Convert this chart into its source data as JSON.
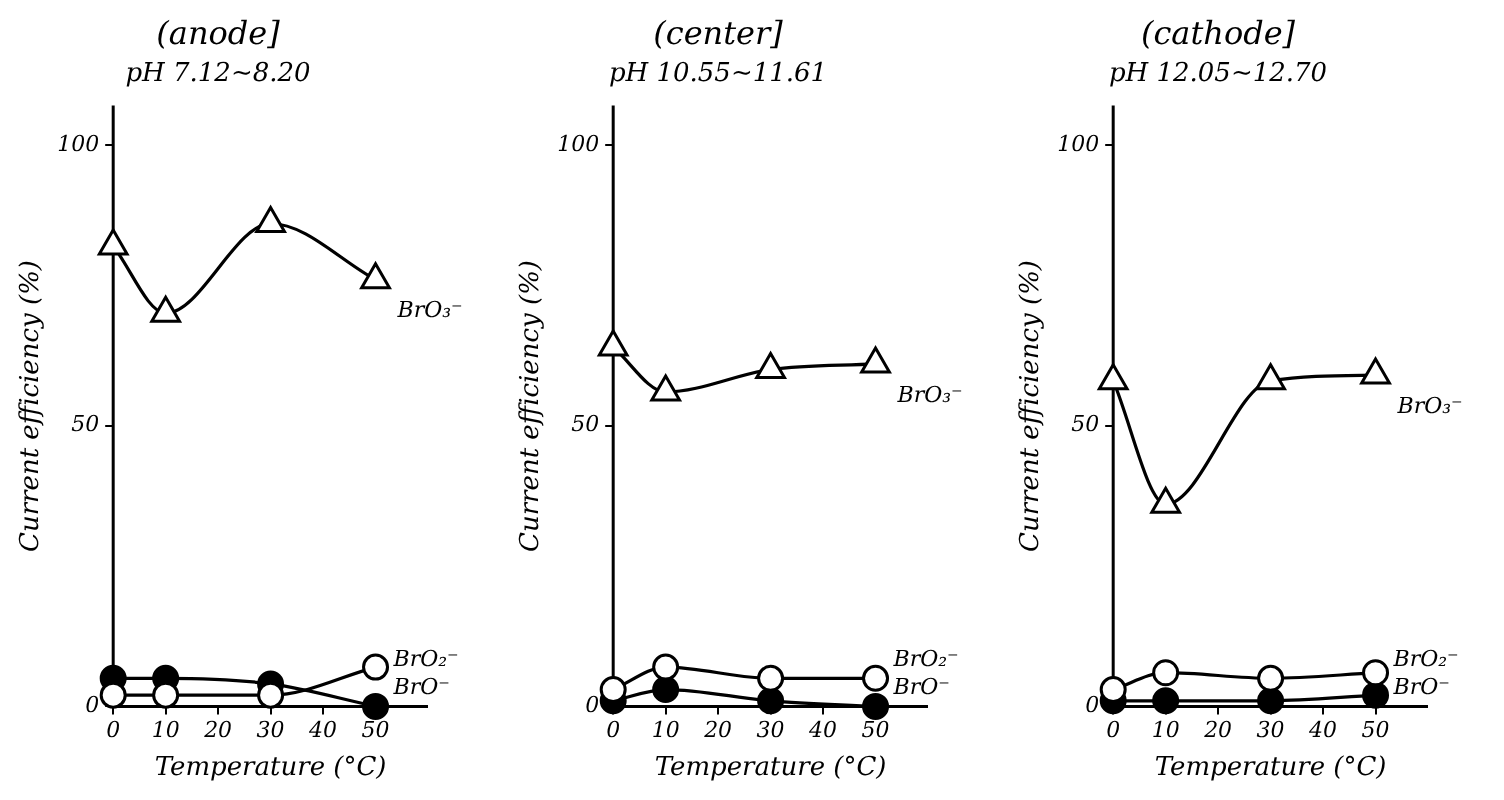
{
  "chart_data": [
    {
      "type": "line",
      "title": "(anode]",
      "subtitle": "pH 7.12~8.20",
      "xlabel": "Temperature (°C)",
      "ylabel": "Current efficiency (%)",
      "x": [
        0,
        10,
        30,
        50
      ],
      "xlim": [
        0,
        60
      ],
      "xticks": [
        0,
        10,
        20,
        30,
        40,
        50
      ],
      "ylim": [
        0,
        107
      ],
      "yticks": [
        0,
        50,
        100
      ],
      "line_style": "solid",
      "series": [
        {
          "name": "BrO₃⁻",
          "color": "#000000",
          "colors": [
            "#ffffff",
            "#ffffff",
            "#ffffff",
            "#ffffff"
          ],
          "marker": "triangle",
          "values": [
            82,
            70,
            86,
            76
          ]
        },
        {
          "name": "BrO₂⁻",
          "color": "#000000",
          "colors": [
            "#ffffff",
            "#ffffff",
            "#ffffff",
            "#ffffff"
          ],
          "marker": "circle",
          "values": [
            2,
            2,
            2,
            7
          ]
        },
        {
          "name": "BrO⁻",
          "color": "#000000",
          "marker": "circle",
          "values": [
            5,
            5,
            4,
            0
          ]
        }
      ]
    },
    {
      "type": "line",
      "title": "(center]",
      "subtitle": "pH 10.55~11.61",
      "xlabel": "Temperature (°C)",
      "ylabel": "Current efficiency (%)",
      "x": [
        0,
        10,
        30,
        50
      ],
      "xlim": [
        0,
        60
      ],
      "xticks": [
        0,
        10,
        20,
        30,
        40,
        50
      ],
      "ylim": [
        0,
        107
      ],
      "yticks": [
        0,
        50,
        100
      ],
      "line_style": "solid",
      "series": [
        {
          "name": "BrO₃⁻",
          "color": "#000000",
          "colors": [
            "#ffffff",
            "#ffffff",
            "#ffffff",
            "#ffffff"
          ],
          "marker": "triangle",
          "values": [
            64,
            56,
            60,
            61
          ]
        },
        {
          "name": "BrO₂⁻",
          "color": "#000000",
          "colors": [
            "#ffffff",
            "#ffffff",
            "#ffffff",
            "#ffffff"
          ],
          "marker": "circle",
          "values": [
            3,
            7,
            5,
            5
          ]
        },
        {
          "name": "BrO⁻",
          "color": "#000000",
          "marker": "circle",
          "values": [
            1,
            3,
            1,
            0
          ]
        }
      ]
    },
    {
      "type": "line",
      "title": "(cathode]",
      "subtitle": "pH 12.05~12.70",
      "xlabel": "Temperature (°C)",
      "ylabel": "Current efficiency (%)",
      "x": [
        0,
        10,
        30,
        50
      ],
      "xlim": [
        0,
        60
      ],
      "xticks": [
        0,
        10,
        20,
        30,
        40,
        50
      ],
      "ylim": [
        0,
        107
      ],
      "yticks": [
        0,
        50,
        100
      ],
      "line_style": "solid",
      "series": [
        {
          "name": "BrO₃⁻",
          "color": "#000000",
          "colors": [
            "#ffffff",
            "#ffffff",
            "#ffffff",
            "#ffffff"
          ],
          "marker": "triangle",
          "values": [
            58,
            36,
            58,
            59
          ]
        },
        {
          "name": "BrO₂⁻",
          "color": "#000000",
          "colors": [
            "#ffffff",
            "#ffffff",
            "#ffffff",
            "#ffffff"
          ],
          "marker": "circle",
          "values": [
            3,
            6,
            5,
            6
          ]
        },
        {
          "name": "BrO⁻",
          "color": "#000000",
          "marker": "circle",
          "values": [
            1,
            1,
            1,
            2
          ]
        }
      ]
    }
  ]
}
